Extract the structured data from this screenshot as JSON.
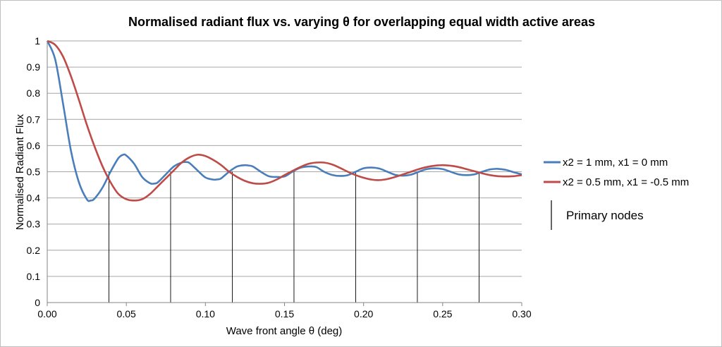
{
  "chart_data": {
    "type": "line",
    "title": "Normalised radiant flux vs. varying θ for overlapping equal width active areas",
    "xlabel": "Wave front angle θ (deg)",
    "ylabel": "Normalised Radiant Flux",
    "xlim": [
      0,
      0.3
    ],
    "ylim": [
      0,
      1
    ],
    "x_ticks": [
      "0.00",
      "0.05",
      "0.10",
      "0.15",
      "0.20",
      "0.25",
      "0.30"
    ],
    "y_ticks": [
      "0",
      "0.1",
      "0.2",
      "0.3",
      "0.4",
      "0.5",
      "0.6",
      "0.7",
      "0.8",
      "0.9",
      "1"
    ],
    "grid": "horizontal",
    "legend_position": "right",
    "series": [
      {
        "name": "x2 = 1 mm, x1 = 0 mm",
        "color": "#4a7ebb",
        "x": [
          0,
          0.005,
          0.01,
          0.015,
          0.02,
          0.025,
          0.0275,
          0.03,
          0.035,
          0.04,
          0.045,
          0.048,
          0.05,
          0.055,
          0.06,
          0.065,
          0.068,
          0.07,
          0.075,
          0.08,
          0.085,
          0.088,
          0.09,
          0.095,
          0.1,
          0.105,
          0.108,
          0.11,
          0.115,
          0.12,
          0.125,
          0.127,
          0.13,
          0.135,
          0.14,
          0.145,
          0.15,
          0.155,
          0.16,
          0.165,
          0.17,
          0.175,
          0.18,
          0.185,
          0.19,
          0.195,
          0.2,
          0.205,
          0.21,
          0.215,
          0.22,
          0.225,
          0.23,
          0.235,
          0.24,
          0.245,
          0.25,
          0.255,
          0.26,
          0.265,
          0.27,
          0.275,
          0.28,
          0.285,
          0.29,
          0.295,
          0.3
        ],
        "y": [
          1.0,
          0.93,
          0.76,
          0.58,
          0.46,
          0.395,
          0.39,
          0.398,
          0.44,
          0.5,
          0.552,
          0.565,
          0.562,
          0.53,
          0.48,
          0.456,
          0.455,
          0.46,
          0.49,
          0.52,
          0.535,
          0.537,
          0.533,
          0.505,
          0.478,
          0.47,
          0.471,
          0.475,
          0.5,
          0.52,
          0.525,
          0.524,
          0.52,
          0.5,
          0.483,
          0.48,
          0.482,
          0.5,
          0.515,
          0.52,
          0.518,
          0.5,
          0.488,
          0.484,
          0.487,
          0.5,
          0.513,
          0.516,
          0.512,
          0.5,
          0.488,
          0.485,
          0.489,
          0.5,
          0.51,
          0.513,
          0.51,
          0.5,
          0.49,
          0.487,
          0.49,
          0.5,
          0.509,
          0.511,
          0.507,
          0.498,
          0.49
        ]
      },
      {
        "name": "x2 = 0.5 mm, x1 = -0.5 mm",
        "color": "#be4b48",
        "x": [
          0,
          0.005,
          0.01,
          0.015,
          0.02,
          0.025,
          0.03,
          0.035,
          0.04,
          0.045,
          0.05,
          0.055,
          0.06,
          0.065,
          0.07,
          0.075,
          0.08,
          0.085,
          0.09,
          0.095,
          0.1,
          0.105,
          0.11,
          0.115,
          0.12,
          0.125,
          0.13,
          0.135,
          0.14,
          0.145,
          0.15,
          0.155,
          0.16,
          0.165,
          0.17,
          0.175,
          0.18,
          0.185,
          0.19,
          0.195,
          0.2,
          0.205,
          0.21,
          0.215,
          0.22,
          0.225,
          0.23,
          0.235,
          0.24,
          0.245,
          0.25,
          0.255,
          0.26,
          0.265,
          0.27,
          0.275,
          0.28,
          0.285,
          0.29,
          0.295,
          0.3
        ],
        "y": [
          1.0,
          0.985,
          0.94,
          0.865,
          0.775,
          0.68,
          0.595,
          0.52,
          0.46,
          0.415,
          0.395,
          0.39,
          0.395,
          0.415,
          0.445,
          0.475,
          0.505,
          0.535,
          0.555,
          0.565,
          0.56,
          0.545,
          0.525,
          0.5,
          0.48,
          0.465,
          0.456,
          0.454,
          0.458,
          0.47,
          0.487,
          0.503,
          0.518,
          0.53,
          0.535,
          0.535,
          0.528,
          0.515,
          0.5,
          0.487,
          0.477,
          0.47,
          0.468,
          0.472,
          0.48,
          0.49,
          0.5,
          0.51,
          0.518,
          0.523,
          0.525,
          0.523,
          0.518,
          0.51,
          0.502,
          0.494,
          0.487,
          0.483,
          0.482,
          0.483,
          0.487
        ]
      }
    ],
    "primary_nodes": {
      "label": "Primary nodes",
      "x": [
        0.039,
        0.078,
        0.117,
        0.156,
        0.195,
        0.234,
        0.273
      ],
      "y": [
        0.5,
        0.5,
        0.5,
        0.5,
        0.5,
        0.5,
        0.5
      ],
      "color": "#000000"
    }
  }
}
